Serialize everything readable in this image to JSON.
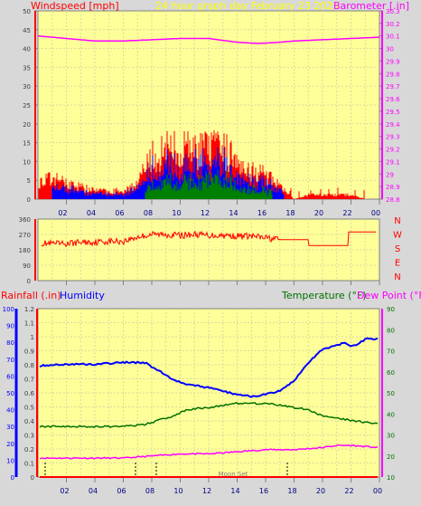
{
  "colors": {
    "background": "#d8d8d8",
    "plot_bg": "#ffff99",
    "grid": "#d9d9a0",
    "wind": "#ff0000",
    "gust_blue": "#0000ff",
    "gust_green": "#008000",
    "barometer": "#ff00ff",
    "direction": "#ff0000",
    "rain": "#ff0000",
    "humidity": "#0000ff",
    "temperature": "#007000",
    "dewpoint": "#ff00ff",
    "title": "#ffff00"
  },
  "header": {
    "windspeed_label": "Windspeed [mph]",
    "title": "24 hour graph day   February 23 2025",
    "barometer_label": "Barometer [.in]"
  },
  "bottom_header": {
    "rain_label": "Rainfall (.in)",
    "humidity_label": "Humidity",
    "temperature_label": "Temperature (°F)",
    "dewpoint_label": "Dew Point (°F)"
  },
  "moon_label": "Moon Set",
  "compass": [
    "N",
    "W",
    "S",
    "E",
    "N"
  ],
  "chart_data": [
    {
      "type": "line",
      "title": "24 hour graph day   February 23 2025",
      "x_ticks": [
        "02",
        "04",
        "06",
        "08",
        "10",
        "12",
        "14",
        "16",
        "18",
        "20",
        "22",
        "00"
      ],
      "ylabel_left": "Windspeed [mph]",
      "ylabel_right": "Barometer [.in]",
      "ylim_left": [
        0,
        50
      ],
      "ylim_right": [
        28.8,
        30.3
      ],
      "left_ticks": [
        "0",
        "5",
        "10",
        "15",
        "20",
        "25",
        "30",
        "35",
        "40",
        "45",
        "50"
      ],
      "right_ticks": [
        "28.8",
        "28.9",
        "29",
        "29.1",
        "29.2",
        "29.3",
        "29.4",
        "29.5",
        "29.6",
        "29.7",
        "29.8",
        "29.9",
        "30",
        "30.1",
        "30.2",
        "30.3"
      ],
      "series": [
        {
          "name": "Barometer [.in]",
          "color": "#ff00ff",
          "x": [
            0,
            2,
            4,
            6,
            8,
            10,
            12,
            14,
            15.5,
            17,
            18,
            20,
            22,
            24
          ],
          "values": [
            30.1,
            30.08,
            30.06,
            30.06,
            30.07,
            30.08,
            30.08,
            30.05,
            30.04,
            30.05,
            30.06,
            30.07,
            30.08,
            30.09
          ]
        },
        {
          "name": "Windspeed [mph]",
          "color": "#ff0000",
          "x": [
            0,
            1,
            2,
            3,
            4,
            5,
            6,
            7,
            8,
            9,
            10,
            11,
            12,
            13,
            14,
            15,
            16,
            17,
            18,
            19,
            20,
            21,
            22,
            23,
            24
          ],
          "values": [
            4,
            5,
            4,
            3,
            2,
            2,
            2,
            4,
            10,
            12,
            12,
            12,
            12,
            12,
            10,
            7,
            6,
            3,
            0,
            1,
            1,
            1,
            1,
            0,
            0
          ]
        }
      ]
    },
    {
      "type": "line",
      "ylim": [
        0,
        360
      ],
      "y_ticks": [
        "0",
        "90",
        "180",
        "270",
        "360"
      ],
      "series": [
        {
          "name": "Wind Direction",
          "color": "#ff0000",
          "x": [
            0,
            1,
            2,
            3,
            4,
            5,
            6,
            7,
            8,
            9,
            10,
            11,
            12,
            13,
            14,
            15,
            16,
            17,
            18,
            19,
            19.01,
            21.8,
            21.81,
            24
          ],
          "values": [
            220,
            215,
            215,
            225,
            225,
            230,
            230,
            255,
            270,
            270,
            265,
            270,
            265,
            265,
            260,
            260,
            250,
            240,
            240,
            240,
            205,
            205,
            285,
            285
          ]
        }
      ]
    },
    {
      "type": "line",
      "x_ticks": [
        "02",
        "04",
        "06",
        "08",
        "10",
        "12",
        "14",
        "16",
        "18",
        "20",
        "22",
        "00"
      ],
      "ylim_rain": [
        0,
        1.2
      ],
      "ylim_humidity": [
        0,
        100
      ],
      "ylim_temperature": [
        10,
        90
      ],
      "rain_ticks": [
        "0",
        "0.1",
        "0.2",
        "0.3",
        "0.4",
        "0.5",
        "0.6",
        "0.7",
        "0.8",
        "0.9",
        "1",
        "1.1",
        "1.2"
      ],
      "humidity_ticks": [
        "0",
        "10",
        "20",
        "30",
        "40",
        "50",
        "60",
        "70",
        "80",
        "90",
        "100"
      ],
      "temperature_ticks": [
        "10",
        "20",
        "30",
        "40",
        "50",
        "60",
        "70",
        "80",
        "90"
      ],
      "series": [
        {
          "name": "Humidity",
          "color": "#0000ff",
          "x": [
            0,
            2,
            4,
            6,
            7.5,
            8.5,
            9.5,
            10.5,
            12,
            13,
            14,
            15,
            16,
            17,
            18,
            19,
            20,
            21,
            21.5,
            22,
            22.5,
            23,
            24
          ],
          "values": [
            66,
            67,
            67,
            68,
            68,
            63,
            58,
            55,
            53,
            51,
            49,
            48,
            49,
            51,
            57,
            68,
            76,
            78,
            80,
            78,
            79,
            82,
            82
          ]
        },
        {
          "name": "Temperature (°F)",
          "color": "#007000",
          "x": [
            0,
            2,
            4,
            6,
            7.5,
            8.5,
            9.5,
            10.5,
            12,
            13,
            14,
            15,
            16,
            17,
            18,
            19,
            20,
            21,
            22,
            23,
            24
          ],
          "values": [
            34,
            34,
            34,
            34,
            35,
            37,
            39,
            42,
            43,
            44,
            45,
            45,
            45,
            44,
            43,
            42,
            39,
            38,
            37,
            36,
            35
          ]
        },
        {
          "name": "Dew Point (°F)",
          "color": "#ff00ff",
          "x": [
            0,
            2,
            4,
            6,
            8,
            10,
            12,
            14,
            16,
            18,
            20,
            21,
            22,
            24
          ],
          "values": [
            19,
            19,
            19,
            19,
            20,
            21,
            21,
            22,
            23,
            23,
            24,
            25,
            25,
            24
          ]
        },
        {
          "name": "Rainfall (.in)",
          "color": "#ff0000",
          "x": [
            0,
            24
          ],
          "values": [
            0,
            0
          ]
        }
      ]
    }
  ]
}
